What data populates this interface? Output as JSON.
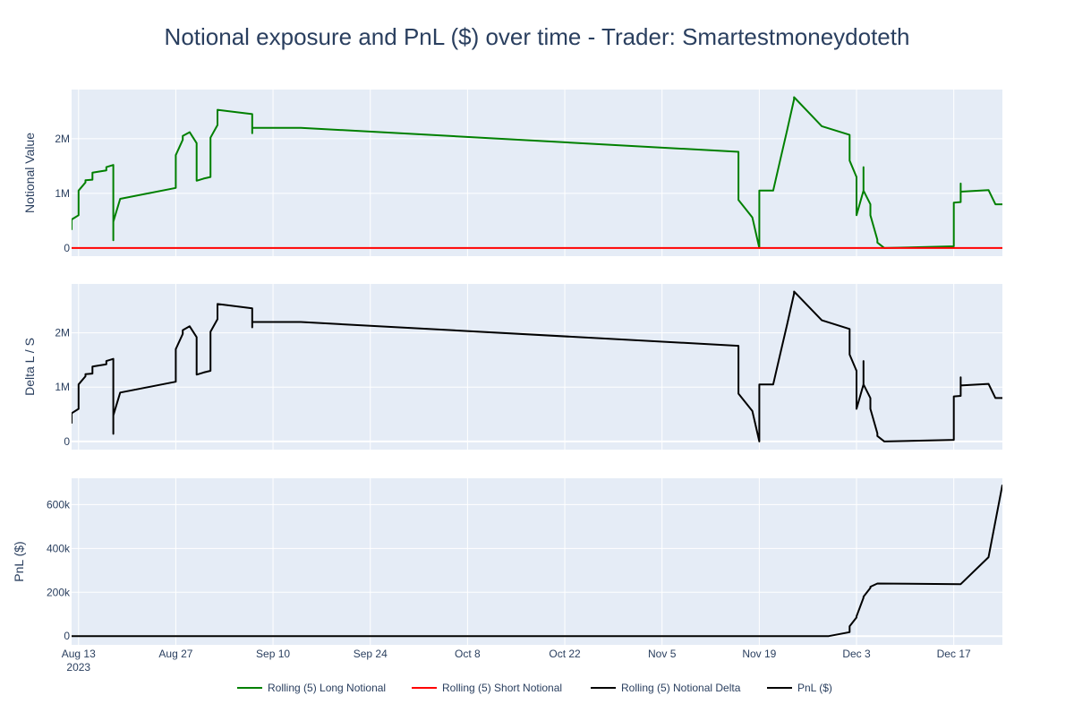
{
  "chart_data": {
    "type": "line",
    "title": "Notional exposure and PnL ($) over time - Trader: Smartestmoneydoteth",
    "x_tick_labels": [
      "Aug 13",
      "Aug 27",
      "Sep 10",
      "Sep 24",
      "Oct 8",
      "Oct 22",
      "Nov 5",
      "Nov 19",
      "Dec 3",
      "Dec 17"
    ],
    "x_tick_dates": [
      "2023-08-13",
      "2023-08-27",
      "2023-09-10",
      "2023-09-24",
      "2023-10-08",
      "2023-10-22",
      "2023-11-05",
      "2023-11-19",
      "2023-12-03",
      "2023-12-17"
    ],
    "x_year_label": "2023",
    "x_range": [
      "2023-08-12",
      "2023-12-24"
    ],
    "grid": true,
    "legend_position": "bottom-center",
    "colors": {
      "long": "#008000",
      "short": "#ff0000",
      "delta": "#000000",
      "pnl": "#000000",
      "plot_bg": "#e5ecf6",
      "text": "#2a3f5f"
    },
    "panels": [
      {
        "ylabel": "Notional Value",
        "ylim": [
          -150000,
          2900000
        ],
        "y_ticks": [
          0,
          1000000,
          2000000
        ],
        "y_tick_labels": [
          "0",
          "1M",
          "2M"
        ],
        "series": [
          {
            "name": "Rolling (5) Long Notional",
            "color": "#008000",
            "points": [
              [
                "2023-08-12",
                330000
              ],
              [
                "2023-08-12",
                520000
              ],
              [
                "2023-08-13",
                600000
              ],
              [
                "2023-08-13",
                650000
              ],
              [
                "2023-08-13",
                1050000
              ],
              [
                "2023-08-14",
                1200000
              ],
              [
                "2023-08-14",
                1240000
              ],
              [
                "2023-08-15",
                1250000
              ],
              [
                "2023-08-15",
                1380000
              ],
              [
                "2023-08-17",
                1420000
              ],
              [
                "2023-08-17",
                1480000
              ],
              [
                "2023-08-18",
                1520000
              ],
              [
                "2023-08-18",
                1250000
              ],
              [
                "2023-08-18",
                140000
              ],
              [
                "2023-08-18",
                480000
              ],
              [
                "2023-08-19",
                900000
              ],
              [
                "2023-08-27",
                1100000
              ],
              [
                "2023-08-27",
                1700000
              ],
              [
                "2023-08-28",
                1980000
              ],
              [
                "2023-08-28",
                2050000
              ],
              [
                "2023-08-29",
                2120000
              ],
              [
                "2023-08-30",
                1920000
              ],
              [
                "2023-08-30",
                1230000
              ],
              [
                "2023-08-31",
                1270000
              ],
              [
                "2023-09-01",
                1300000
              ],
              [
                "2023-09-01",
                2020000
              ],
              [
                "2023-09-02",
                2250000
              ],
              [
                "2023-09-02",
                2530000
              ],
              [
                "2023-09-07",
                2450000
              ],
              [
                "2023-09-07",
                2100000
              ],
              [
                "2023-09-07",
                2200000
              ],
              [
                "2023-09-14",
                2200000
              ],
              [
                "2023-11-16",
                1760000
              ],
              [
                "2023-11-16",
                880000
              ],
              [
                "2023-11-18",
                560000
              ],
              [
                "2023-11-19",
                0
              ],
              [
                "2023-11-19",
                740000
              ],
              [
                "2023-11-19",
                1050000
              ],
              [
                "2023-11-21",
                1050000
              ],
              [
                "2023-11-22",
                1600000
              ],
              [
                "2023-11-23",
                2150000
              ],
              [
                "2023-11-24",
                2720000
              ],
              [
                "2023-11-24",
                2760000
              ],
              [
                "2023-11-28",
                2230000
              ],
              [
                "2023-12-02",
                2070000
              ],
              [
                "2023-12-02",
                1670000
              ],
              [
                "2023-12-02",
                1600000
              ],
              [
                "2023-12-03",
                1300000
              ],
              [
                "2023-12-03",
                1050000
              ],
              [
                "2023-12-03",
                600000
              ],
              [
                "2023-12-04",
                1050000
              ],
              [
                "2023-12-04",
                1480000
              ],
              [
                "2023-12-04",
                1050000
              ],
              [
                "2023-12-05",
                800000
              ],
              [
                "2023-12-05",
                600000
              ],
              [
                "2023-12-06",
                150000
              ],
              [
                "2023-12-06",
                100000
              ],
              [
                "2023-12-07",
                0
              ],
              [
                "2023-12-17",
                30000
              ],
              [
                "2023-12-17",
                830000
              ],
              [
                "2023-12-18",
                840000
              ],
              [
                "2023-12-18",
                1180000
              ],
              [
                "2023-12-18",
                1030000
              ],
              [
                "2023-12-22",
                1060000
              ],
              [
                "2023-12-23",
                800000
              ],
              [
                "2023-12-24",
                800000
              ]
            ]
          },
          {
            "name": "Rolling (5) Short Notional",
            "color": "#ff0000",
            "points": [
              [
                "2023-08-12",
                0
              ],
              [
                "2023-12-24",
                0
              ]
            ]
          }
        ]
      },
      {
        "ylabel": "Delta L / S",
        "ylim": [
          -150000,
          2900000
        ],
        "y_ticks": [
          0,
          1000000,
          2000000
        ],
        "y_tick_labels": [
          "0",
          "1M",
          "2M"
        ],
        "series": [
          {
            "name": "Rolling (5) Notional Delta",
            "color": "#000000",
            "points": [
              [
                "2023-08-12",
                330000
              ],
              [
                "2023-08-12",
                520000
              ],
              [
                "2023-08-13",
                600000
              ],
              [
                "2023-08-13",
                650000
              ],
              [
                "2023-08-13",
                1050000
              ],
              [
                "2023-08-14",
                1200000
              ],
              [
                "2023-08-14",
                1240000
              ],
              [
                "2023-08-15",
                1250000
              ],
              [
                "2023-08-15",
                1380000
              ],
              [
                "2023-08-17",
                1420000
              ],
              [
                "2023-08-17",
                1480000
              ],
              [
                "2023-08-18",
                1520000
              ],
              [
                "2023-08-18",
                1250000
              ],
              [
                "2023-08-18",
                140000
              ],
              [
                "2023-08-18",
                480000
              ],
              [
                "2023-08-19",
                900000
              ],
              [
                "2023-08-27",
                1100000
              ],
              [
                "2023-08-27",
                1700000
              ],
              [
                "2023-08-28",
                1980000
              ],
              [
                "2023-08-28",
                2050000
              ],
              [
                "2023-08-29",
                2120000
              ],
              [
                "2023-08-30",
                1920000
              ],
              [
                "2023-08-30",
                1230000
              ],
              [
                "2023-08-31",
                1270000
              ],
              [
                "2023-09-01",
                1300000
              ],
              [
                "2023-09-01",
                2020000
              ],
              [
                "2023-09-02",
                2250000
              ],
              [
                "2023-09-02",
                2530000
              ],
              [
                "2023-09-07",
                2450000
              ],
              [
                "2023-09-07",
                2100000
              ],
              [
                "2023-09-07",
                2200000
              ],
              [
                "2023-09-14",
                2200000
              ],
              [
                "2023-11-16",
                1760000
              ],
              [
                "2023-11-16",
                880000
              ],
              [
                "2023-11-18",
                560000
              ],
              [
                "2023-11-19",
                0
              ],
              [
                "2023-11-19",
                740000
              ],
              [
                "2023-11-19",
                1050000
              ],
              [
                "2023-11-21",
                1050000
              ],
              [
                "2023-11-22",
                1600000
              ],
              [
                "2023-11-23",
                2150000
              ],
              [
                "2023-11-24",
                2720000
              ],
              [
                "2023-11-24",
                2760000
              ],
              [
                "2023-11-28",
                2230000
              ],
              [
                "2023-12-02",
                2070000
              ],
              [
                "2023-12-02",
                1670000
              ],
              [
                "2023-12-02",
                1600000
              ],
              [
                "2023-12-03",
                1300000
              ],
              [
                "2023-12-03",
                1050000
              ],
              [
                "2023-12-03",
                600000
              ],
              [
                "2023-12-04",
                1050000
              ],
              [
                "2023-12-04",
                1480000
              ],
              [
                "2023-12-04",
                1050000
              ],
              [
                "2023-12-05",
                800000
              ],
              [
                "2023-12-05",
                600000
              ],
              [
                "2023-12-06",
                150000
              ],
              [
                "2023-12-06",
                100000
              ],
              [
                "2023-12-07",
                0
              ],
              [
                "2023-12-17",
                30000
              ],
              [
                "2023-12-17",
                830000
              ],
              [
                "2023-12-18",
                840000
              ],
              [
                "2023-12-18",
                1180000
              ],
              [
                "2023-12-18",
                1030000
              ],
              [
                "2023-12-22",
                1060000
              ],
              [
                "2023-12-23",
                800000
              ],
              [
                "2023-12-24",
                800000
              ]
            ]
          }
        ]
      },
      {
        "ylabel": "PnL ($)",
        "ylim": [
          -40000,
          720000
        ],
        "y_ticks": [
          0,
          200000,
          400000,
          600000
        ],
        "y_tick_labels": [
          "0",
          "200k",
          "400k",
          "600k"
        ],
        "series": [
          {
            "name": "PnL ($)",
            "color": "#000000",
            "points": [
              [
                "2023-08-12",
                0
              ],
              [
                "2023-11-29",
                0
              ],
              [
                "2023-12-02",
                18000
              ],
              [
                "2023-12-02",
                45000
              ],
              [
                "2023-12-03",
                85000
              ],
              [
                "2023-12-03",
                90000
              ],
              [
                "2023-12-04",
                175000
              ],
              [
                "2023-12-04",
                180000
              ],
              [
                "2023-12-05",
                220000
              ],
              [
                "2023-12-05",
                225000
              ],
              [
                "2023-12-06",
                240000
              ],
              [
                "2023-12-18",
                237000
              ],
              [
                "2023-12-22",
                360000
              ],
              [
                "2023-12-24",
                690000
              ]
            ]
          }
        ]
      }
    ],
    "legend": [
      {
        "name": "Rolling (5) Long Notional",
        "color": "#008000"
      },
      {
        "name": "Rolling (5) Short Notional",
        "color": "#ff0000"
      },
      {
        "name": "Rolling (5) Notional Delta",
        "color": "#000000"
      },
      {
        "name": "PnL ($)",
        "color": "#000000"
      }
    ]
  }
}
